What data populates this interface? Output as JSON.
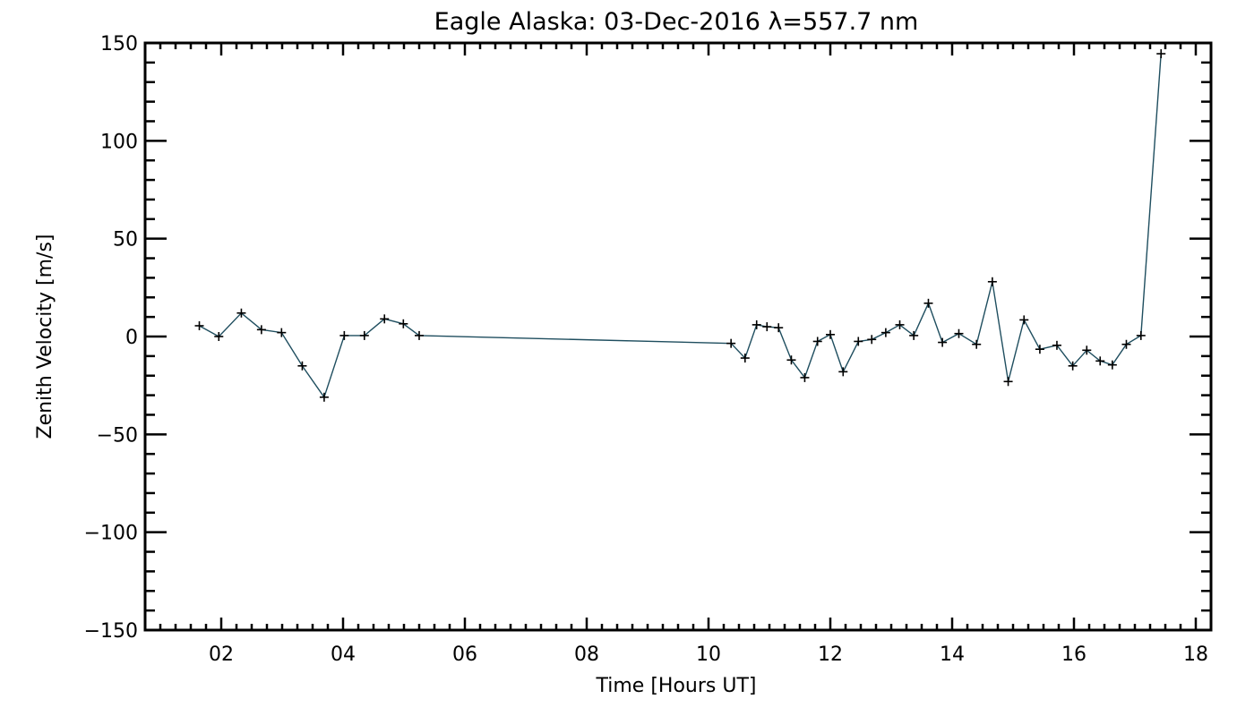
{
  "chart_data": {
    "type": "line",
    "title": "Eagle Alaska: 03-Dec-2016 λ=557.7 nm",
    "xlabel": "Time [Hours UT]",
    "ylabel": "Zenith Velocity [m/s]",
    "xlim": [
      0.75,
      18.25
    ],
    "ylim": [
      -150,
      150
    ],
    "xticks": [
      {
        "value": 2,
        "label": "02"
      },
      {
        "value": 4,
        "label": "04"
      },
      {
        "value": 6,
        "label": "06"
      },
      {
        "value": 8,
        "label": "08"
      },
      {
        "value": 10,
        "label": "10"
      },
      {
        "value": 12,
        "label": "12"
      },
      {
        "value": 14,
        "label": "14"
      },
      {
        "value": 16,
        "label": "16"
      },
      {
        "value": 18,
        "label": "18"
      }
    ],
    "yticks": [
      {
        "value": 150,
        "label": "150"
      },
      {
        "value": 100,
        "label": "100"
      },
      {
        "value": 50,
        "label": "50"
      },
      {
        "value": 0,
        "label": "0"
      },
      {
        "value": -50,
        "label": "−50"
      },
      {
        "value": -100,
        "label": "−100"
      },
      {
        "value": -150,
        "label": "−150"
      }
    ],
    "grid": false,
    "marker": "+",
    "line_color": "#1f4e5f",
    "marker_color": "#000000",
    "series": [
      {
        "points": [
          [
            1.64,
            5.5
          ],
          [
            1.96,
            0.0
          ],
          [
            2.33,
            12.0
          ],
          [
            2.66,
            3.5
          ],
          [
            2.99,
            2.0
          ],
          [
            3.33,
            -15.0
          ],
          [
            3.69,
            -31.0
          ],
          [
            4.02,
            0.5
          ],
          [
            4.35,
            0.5
          ],
          [
            4.68,
            9.0
          ],
          [
            4.99,
            6.5
          ],
          [
            5.25,
            0.5
          ],
          [
            10.37,
            -3.5
          ],
          [
            10.6,
            -11.0
          ],
          [
            10.79,
            6.0
          ],
          [
            10.96,
            5.0
          ],
          [
            11.15,
            4.5
          ],
          [
            11.36,
            -12.0
          ],
          [
            11.58,
            -21.0
          ],
          [
            11.79,
            -2.5
          ],
          [
            12.0,
            1.0
          ],
          [
            12.21,
            -18.0
          ],
          [
            12.46,
            -2.5
          ],
          [
            12.68,
            -1.5
          ],
          [
            12.91,
            2.0
          ],
          [
            13.14,
            6.0
          ],
          [
            13.37,
            0.5
          ],
          [
            13.61,
            17.0
          ],
          [
            13.84,
            -3.0
          ],
          [
            14.11,
            1.5
          ],
          [
            14.4,
            -4.0
          ],
          [
            14.66,
            28.0
          ],
          [
            14.92,
            -23.0
          ],
          [
            15.18,
            8.5
          ],
          [
            15.44,
            -6.5
          ],
          [
            15.72,
            -4.5
          ],
          [
            15.98,
            -15.0
          ],
          [
            16.21,
            -7.0
          ],
          [
            16.43,
            -12.5
          ],
          [
            16.63,
            -14.5
          ],
          [
            16.86,
            -4.0
          ],
          [
            17.1,
            0.5
          ],
          [
            17.43,
            144.5
          ]
        ]
      }
    ]
  }
}
